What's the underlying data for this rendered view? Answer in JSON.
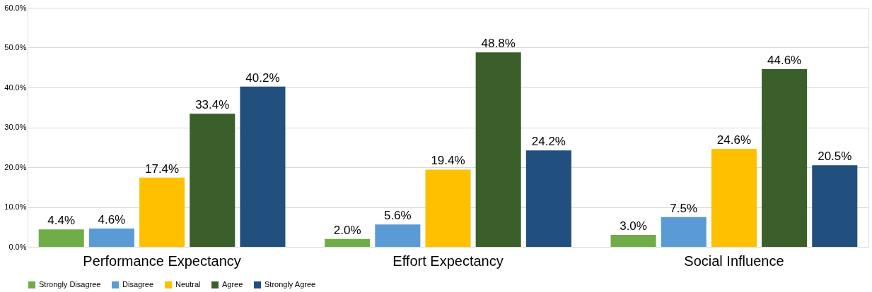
{
  "chart_data": {
    "type": "bar",
    "categories": [
      "Performance Expectancy",
      "Effort Expectancy",
      "Social Influence"
    ],
    "series": [
      {
        "name": "Strongly Disagree",
        "color": "#70ad47",
        "values": [
          4.4,
          2.0,
          3.0
        ],
        "value_labels": [
          "4.4%",
          "2.0%",
          "3.0%"
        ]
      },
      {
        "name": "Disagree",
        "color": "#5b9bd5",
        "values": [
          4.6,
          5.6,
          7.5
        ],
        "value_labels": [
          "4.6%",
          "5.6%",
          "7.5%"
        ]
      },
      {
        "name": "Neutral",
        "color": "#ffc000",
        "values": [
          17.4,
          19.4,
          24.6
        ],
        "value_labels": [
          "17.4%",
          "19.4%",
          "24.6%"
        ]
      },
      {
        "name": "Agree",
        "color": "#3a5f2a",
        "values": [
          33.4,
          48.8,
          44.6
        ],
        "value_labels": [
          "33.4%",
          "48.8%",
          "44.6%"
        ]
      },
      {
        "name": "Strongly Agree",
        "color": "#21507f",
        "values": [
          40.2,
          24.2,
          20.5
        ],
        "value_labels": [
          "40.2%",
          "24.2%",
          "20.5%"
        ]
      }
    ],
    "ylim": [
      0,
      60
    ],
    "yticks": [
      {
        "value": 0,
        "label": "0.0%"
      },
      {
        "value": 10,
        "label": "10.0%"
      },
      {
        "value": 20,
        "label": "20.0%"
      },
      {
        "value": 30,
        "label": "30.0%"
      },
      {
        "value": 40,
        "label": "40.0%"
      },
      {
        "value": 50,
        "label": "50.0%"
      },
      {
        "value": 60,
        "label": "60.0%"
      }
    ],
    "grid": "y",
    "legend": "bottom"
  }
}
